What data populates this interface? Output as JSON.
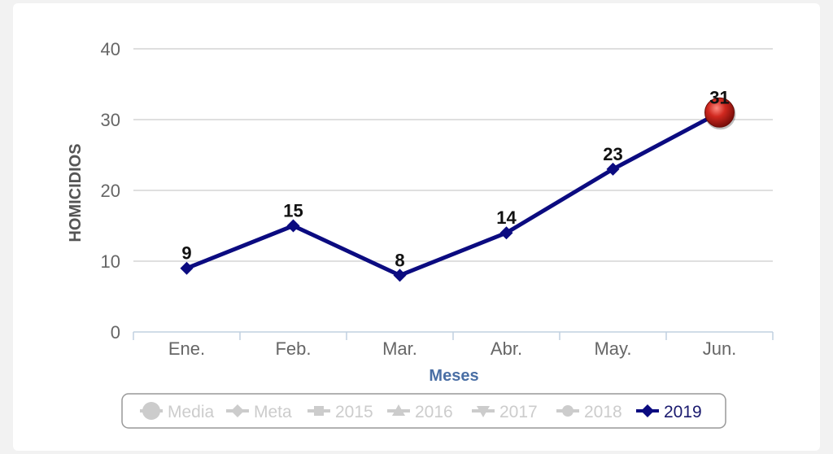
{
  "chart_data": {
    "type": "line",
    "title": "",
    "xlabel": "Meses",
    "ylabel": "HOMICIDIOS",
    "categories": [
      "Ene.",
      "Feb.",
      "Mar.",
      "Abr.",
      "May.",
      "Jun."
    ],
    "yticks": [
      0,
      10,
      20,
      30,
      40
    ],
    "ylim": [
      0,
      40
    ],
    "grid": true,
    "legend_position": "bottom",
    "series": [
      {
        "name": "2019",
        "values": [
          9,
          15,
          8,
          14,
          23,
          31
        ],
        "color": "#0b0b80"
      }
    ],
    "legend": [
      {
        "label": "Media",
        "symbol": "circle",
        "active": false
      },
      {
        "label": "Meta",
        "symbol": "diamond",
        "active": false
      },
      {
        "label": "2015",
        "symbol": "square",
        "active": false
      },
      {
        "label": "2016",
        "symbol": "triangle",
        "active": false
      },
      {
        "label": "2017",
        "symbol": "triangle-down",
        "active": false
      },
      {
        "label": "2018",
        "symbol": "circle",
        "active": false
      },
      {
        "label": "2019",
        "symbol": "diamond",
        "active": true
      }
    ],
    "highlight": {
      "category": "Jun.",
      "color": "#c0201c"
    }
  }
}
